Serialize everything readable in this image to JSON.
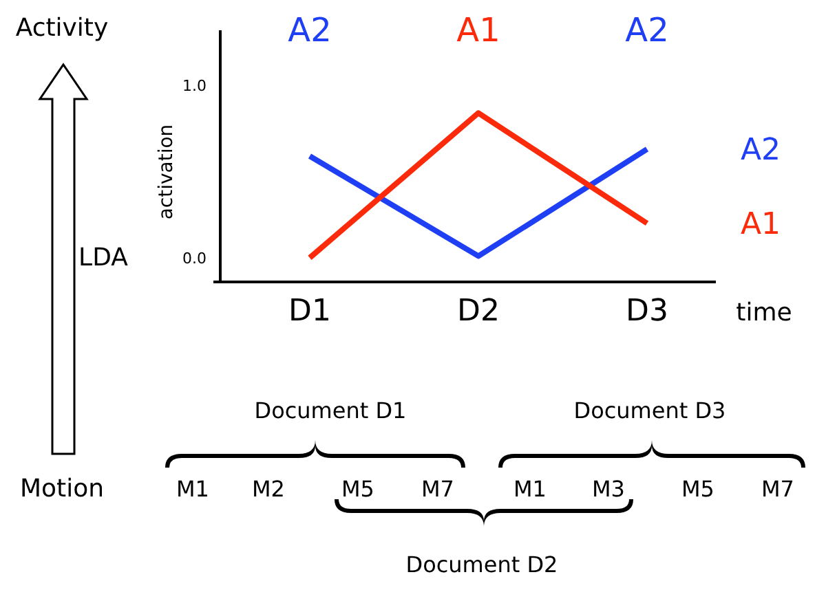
{
  "chart_data": {
    "type": "line",
    "categories": [
      "D1",
      "D2",
      "D3"
    ],
    "xlabel": "time",
    "ylabel": "activation",
    "ylim": [
      -0.14,
      1.32
    ],
    "yticks": [
      {
        "value": 0,
        "label": "0.0"
      },
      {
        "value": 1,
        "label": "1.0"
      }
    ],
    "series": [
      {
        "name": "A2",
        "color": "#1f3ff5",
        "values": [
          0.59,
          0.01,
          0.63
        ]
      },
      {
        "name": "A1",
        "color": "#fa2a0a",
        "values": [
          0.0,
          0.84,
          0.2
        ]
      }
    ],
    "annotations": [
      "Activity",
      "Motion",
      "LDA",
      "A2",
      "A1",
      "A2",
      "Document D1",
      "Document D2",
      "Document D3",
      "M1",
      "M2",
      "M5",
      "M7",
      "M1",
      "M3",
      "M5",
      "M7"
    ]
  }
}
